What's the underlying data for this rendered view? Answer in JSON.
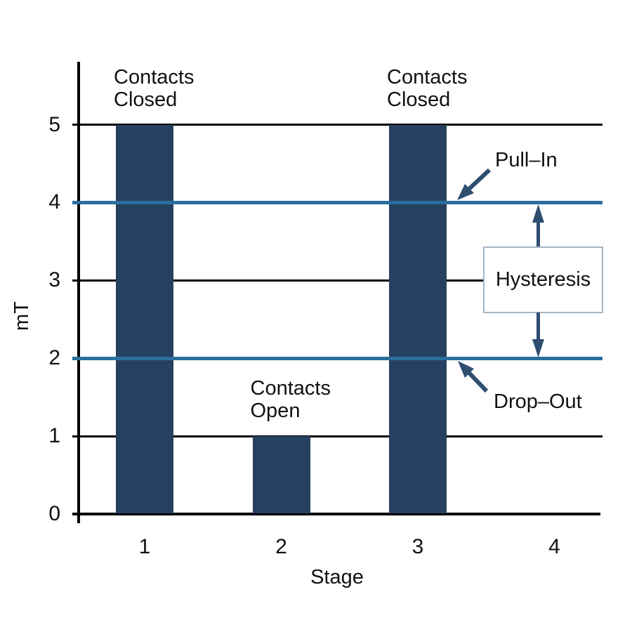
{
  "chart_data": {
    "type": "bar",
    "title": "",
    "xlabel": "Stage",
    "ylabel": "mT",
    "categories": [
      "1",
      "2",
      "3",
      "4"
    ],
    "values": [
      5,
      1,
      5,
      0
    ],
    "bar_annotations": [
      "Contacts\nClosed",
      "Contacts\nOpen",
      "Contacts\nClosed",
      ""
    ],
    "yticks": [
      "0",
      "1",
      "2",
      "3",
      "4",
      "5"
    ],
    "ylim": [
      0,
      5.9
    ],
    "grid": true,
    "gridlines_at": [
      1,
      3,
      5
    ],
    "legend_position": "none",
    "reference_lines": [
      {
        "value": 4,
        "label": "Pull–In",
        "color": "#2B6F9E"
      },
      {
        "value": 2,
        "label": "Drop–Out",
        "color": "#2B6F9E"
      }
    ],
    "annotations": {
      "hysteresis_label": "Hysteresis",
      "hysteresis_span": [
        2,
        4
      ]
    },
    "colors": {
      "bar": "#26405F",
      "reference_line": "#2B6F9E",
      "arrow": "#2E4E70",
      "axis": "#000000",
      "hysteresis_box_border": "#A7B5C3",
      "text": "#111111"
    }
  }
}
